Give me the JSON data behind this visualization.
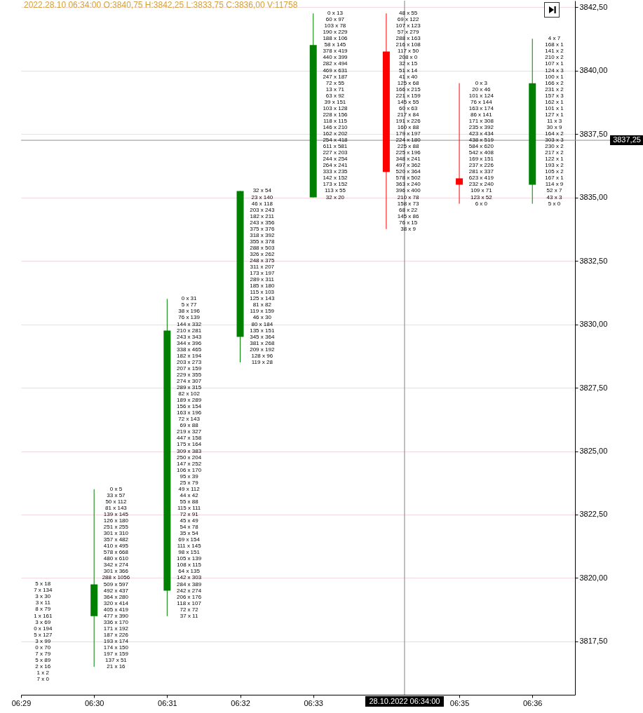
{
  "chart_data": {
    "type": "candlestick",
    "title": "2022.28.10 06:34:00 O:3840,75 H:3842,25 L:3833,75 C:3836,00 V:11758",
    "x": [
      "2022-10-28T06:30",
      "2022-10-28T06:31",
      "2022-10-28T06:32",
      "2022-10-28T06:33",
      "2022-10-28T06:34",
      "2022-10-28T06:35",
      "2022-10-28T06:36"
    ],
    "ohlc": [
      [
        3818.5,
        3823.5,
        3816.5,
        3819.75
      ],
      [
        3819.5,
        3831.0,
        3818.5,
        3829.75
      ],
      [
        3829.5,
        3835.25,
        3828.5,
        3835.25
      ],
      [
        3835.0,
        3842.25,
        3835.0,
        3841.0
      ],
      [
        3840.75,
        3842.25,
        3833.75,
        3836.0
      ],
      [
        3835.75,
        3839.5,
        3834.75,
        3835.5
      ],
      [
        3835.5,
        3841.25,
        3834.75,
        3839.5
      ]
    ],
    "colors": [
      "#008000",
      "#008000",
      "#008000",
      "#008000",
      "#ff0000",
      "#ff0000",
      "#008000"
    ],
    "xlim": [
      "2022-10-28T06:29",
      "2022-10-28T06:36:35"
    ],
    "xticks": [
      {
        "value": "2022-10-28T06:29",
        "label": "06:29"
      },
      {
        "value": "2022-10-28T06:30",
        "label": "06:30"
      },
      {
        "value": "2022-10-28T06:31",
        "label": "06:31"
      },
      {
        "value": "2022-10-28T06:32",
        "label": "06:32"
      },
      {
        "value": "2022-10-28T06:33",
        "label": "06:33"
      },
      {
        "value": "2022-10-28T06:35",
        "label": "06:35"
      },
      {
        "value": "2022-10-28T06:36",
        "label": "06:36"
      }
    ],
    "ylim": [
      3815.4,
      3842.75
    ],
    "yticks": [
      {
        "value": 3817.5,
        "label": "3817,50"
      },
      {
        "value": 3820,
        "label": "3820,00"
      },
      {
        "value": 3822.5,
        "label": "3822,50"
      },
      {
        "value": 3825,
        "label": "3825,00"
      },
      {
        "value": 3827.5,
        "label": "3827,50"
      },
      {
        "value": 3830,
        "label": "3830,00"
      },
      {
        "value": 3832.5,
        "label": "3832,50"
      },
      {
        "value": 3835,
        "label": "3835,00"
      },
      {
        "value": 3837.5,
        "label": "3837,50"
      },
      {
        "value": 3840,
        "label": "3840,00"
      },
      {
        "value": 3842.5,
        "label": "3842,50"
      }
    ],
    "grid": "y",
    "ref_lines": [
      {
        "axis": "y",
        "value": 3837.25,
        "label": "3837,25",
        "color": "#909090"
      },
      {
        "axis": "x",
        "value": "2022-10-28T06:34:15",
        "label": "28.10.2022 06:34:00",
        "color": "#808080"
      }
    ],
    "annotations": [
      "5 x 18",
      "7 x 134",
      "3 x 30",
      "3 x 11",
      "8 x 79",
      "1 x 161",
      "3 x 69",
      "0 x 194",
      "5 x 127",
      "3 x 99",
      "0 x 70",
      "7 x 79",
      "5 x 89",
      "2 x 16",
      "1 x 2",
      "7 x 0",
      {
        "text": "0 x 5",
        "x": "2022-10-28T06:30",
        "y": 3823.5
      },
      {
        "text": "33 x 57",
        "x": "2022-10-28T06:30",
        "y": 3823.25
      },
      {
        "text": "50 x 112",
        "x": "2022-10-28T06:30",
        "y": 3823
      },
      {
        "text": "81 x 143",
        "x": "2022-10-28T06:30",
        "y": 3822.75
      },
      {
        "text": "139 x 145",
        "x": "2022-10-28T06:30",
        "y": 3822.5
      },
      {
        "text": "126 x 180",
        "x": "2022-10-28T06:30",
        "y": 3822.25
      },
      {
        "text": "251 x 255",
        "x": "2022-10-28T06:30",
        "y": 3822
      },
      {
        "text": "301 x 310",
        "x": "2022-10-28T06:30",
        "y": 3821.75
      },
      {
        "text": "357 x 482",
        "x": "2022-10-28T06:30",
        "y": 3821.5
      },
      {
        "text": "410 x 495",
        "x": "2022-10-28T06:30",
        "y": 3821.25
      },
      {
        "text": "578 x 668",
        "x": "2022-10-28T06:30",
        "y": 3821
      },
      {
        "text": "480 x 610",
        "x": "2022-10-28T06:30",
        "y": 3820.75
      },
      {
        "text": "342 x 274",
        "x": "2022-10-28T06:30",
        "y": 3820.5
      },
      {
        "text": "301 x 366",
        "x": "2022-10-28T06:30",
        "y": 3820.25
      },
      {
        "text": "288 x 1056",
        "x": "2022-10-28T06:30",
        "y": 3820
      },
      {
        "text": "509 x 597",
        "x": "2022-10-28T06:30",
        "y": 3819.75
      },
      {
        "text": "492 x 437",
        "x": "2022-10-28T06:30",
        "y": 3819.5
      },
      {
        "text": "364 x 280",
        "x": "2022-10-28T06:30",
        "y": 3819.25
      },
      {
        "text": "320 x 414",
        "x": "2022-10-28T06:30",
        "y": 3819
      },
      {
        "text": "405 x 419",
        "x": "2022-10-28T06:30",
        "y": 3818.75
      },
      {
        "text": "477 x 390",
        "x": "2022-10-28T06:30",
        "y": 3818.5
      },
      {
        "text": "336 x 170",
        "x": "2022-10-28T06:30",
        "y": 3818.25
      },
      {
        "text": "171 x 192",
        "x": "2022-10-28T06:30",
        "y": 3818
      },
      {
        "text": "187 x 226",
        "x": "2022-10-28T06:30",
        "y": 3817.75
      },
      {
        "text": "193 x 174",
        "x": "2022-10-28T06:30",
        "y": 3817.5
      },
      {
        "text": "174 x 150",
        "x": "2022-10-28T06:30",
        "y": 3817.25
      },
      {
        "text": "197 x 159",
        "x": "2022-10-28T06:30",
        "y": 3817
      },
      {
        "text": "137 x 51",
        "x": "2022-10-28T06:30",
        "y": 3816.75
      },
      {
        "text": "21 x 16",
        "x": "2022-10-28T06:30",
        "y": 3816.5
      },
      {
        "text": "0 x 31",
        "x": "2022-10-28T06:31",
        "y": 3831
      },
      {
        "text": "5 x 77",
        "x": "2022-10-28T06:31",
        "y": 3830.75
      },
      {
        "text": "38 x 196",
        "x": "2022-10-28T06:31",
        "y": 3830.5
      },
      {
        "text": "76 x 139",
        "x": "2022-10-28T06:31",
        "y": 3830.25
      },
      {
        "text": "144 x 332",
        "x": "2022-10-28T06:31",
        "y": 3830
      },
      {
        "text": "210 x 281",
        "x": "2022-10-28T06:31",
        "y": 3829.75
      },
      {
        "text": "243 x 343",
        "x": "2022-10-28T06:31",
        "y": 3829.5
      },
      {
        "text": "344 x 396",
        "x": "2022-10-28T06:31",
        "y": 3829.25
      },
      {
        "text": "338 x 465",
        "x": "2022-10-28T06:31",
        "y": 3829
      },
      {
        "text": "182 x 194",
        "x": "2022-10-28T06:31",
        "y": 3828.75
      },
      {
        "text": "203 x 273",
        "x": "2022-10-28T06:31",
        "y": 3828.5
      },
      {
        "text": "207 x 159",
        "x": "2022-10-28T06:31",
        "y": 3828.25
      },
      {
        "text": "229 x 355",
        "x": "2022-10-28T06:31",
        "y": 3828
      },
      {
        "text": "274 x 307",
        "x": "2022-10-28T06:31",
        "y": 3827.75
      },
      {
        "text": "289 x 315",
        "x": "2022-10-28T06:31",
        "y": 3827.5
      },
      {
        "text": "82 x 102",
        "x": "2022-10-28T06:31",
        "y": 3827.25
      },
      {
        "text": "189 x 289",
        "x": "2022-10-28T06:31",
        "y": 3827
      },
      {
        "text": "156 x 154",
        "x": "2022-10-28T06:31",
        "y": 3826.75
      },
      {
        "text": "163 x 196",
        "x": "2022-10-28T06:31",
        "y": 3826.5
      },
      {
        "text": "72 x 143",
        "x": "2022-10-28T06:31",
        "y": 3826.25
      },
      {
        "text": "69 x 88",
        "x": "2022-10-28T06:31",
        "y": 3826
      },
      {
        "text": "219 x 327",
        "x": "2022-10-28T06:31",
        "y": 3825.75
      },
      {
        "text": "447 x 158",
        "x": "2022-10-28T06:31",
        "y": 3825.5
      },
      {
        "text": "175 x 164",
        "x": "2022-10-28T06:31",
        "y": 3825.25
      },
      {
        "text": "309 x 383",
        "x": "2022-10-28T06:31",
        "y": 3825
      },
      {
        "text": "250 x 204",
        "x": "2022-10-28T06:31",
        "y": 3824.75
      },
      {
        "text": "147 x 252",
        "x": "2022-10-28T06:31",
        "y": 3824.5
      },
      {
        "text": "106 x 170",
        "x": "2022-10-28T06:31",
        "y": 3824.25
      },
      {
        "text": "95 x 39",
        "x": "2022-10-28T06:31",
        "y": 3824
      },
      {
        "text": "25 x 79",
        "x": "2022-10-28T06:31",
        "y": 3823.75
      },
      {
        "text": "49 x 112",
        "x": "2022-10-28T06:31",
        "y": 3823.5
      },
      {
        "text": "44 x 42",
        "x": "2022-10-28T06:31",
        "y": 3823.25
      },
      {
        "text": "55 x 88",
        "x": "2022-10-28T06:31",
        "y": 3823
      },
      {
        "text": "115 x 111",
        "x": "2022-10-28T06:31",
        "y": 3822.75
      },
      {
        "text": "72 x 91",
        "x": "2022-10-28T06:31",
        "y": 3822.5
      },
      {
        "text": "45 x 49",
        "x": "2022-10-28T06:31",
        "y": 3822.25
      },
      {
        "text": "54 x 78",
        "x": "2022-10-28T06:31",
        "y": 3822
      },
      {
        "text": "35 x 54",
        "x": "2022-10-28T06:31",
        "y": 3821.75
      },
      {
        "text": "69 x 154",
        "x": "2022-10-28T06:31",
        "y": 3821.5
      },
      {
        "text": "111 x 145",
        "x": "2022-10-28T06:31",
        "y": 3821.25
      },
      {
        "text": "98 x 151",
        "x": "2022-10-28T06:31",
        "y": 3821
      },
      {
        "text": "105 x 139",
        "x": "2022-10-28T06:31",
        "y": 3820.75
      },
      {
        "text": "108 x 115",
        "x": "2022-10-28T06:31",
        "y": 3820.5
      },
      {
        "text": "64 x 135",
        "x": "2022-10-28T06:31",
        "y": 3820.25
      },
      {
        "text": "142 x 303",
        "x": "2022-10-28T06:31",
        "y": 3820
      },
      {
        "text": "284 x 389",
        "x": "2022-10-28T06:31",
        "y": 3819.75
      },
      {
        "text": "242 x 274",
        "x": "2022-10-28T06:31",
        "y": 3819.5
      },
      {
        "text": "206 x 176",
        "x": "2022-10-28T06:31",
        "y": 3819.25
      },
      {
        "text": "118 x 107",
        "x": "2022-10-28T06:31",
        "y": 3819
      },
      {
        "text": "72 x 72",
        "x": "2022-10-28T06:31",
        "y": 3818.75
      },
      {
        "text": "37 x 11",
        "x": "2022-10-28T06:31",
        "y": 3818.5
      },
      {
        "text": "32 x 54",
        "x": "2022-10-28T06:32",
        "y": 3835.25
      },
      {
        "text": "23 x 140",
        "x": "2022-10-28T06:32",
        "y": 3835
      },
      {
        "text": "46 x 118",
        "x": "2022-10-28T06:32",
        "y": 3834.75
      },
      {
        "text": "203 x 243",
        "x": "2022-10-28T06:32",
        "y": 3834.5
      },
      {
        "text": "182 x 211",
        "x": "2022-10-28T06:32",
        "y": 3834.25
      },
      {
        "text": "243 x 356",
        "x": "2022-10-28T06:32",
        "y": 3834
      },
      {
        "text": "375 x 376",
        "x": "2022-10-28T06:32",
        "y": 3833.75
      },
      {
        "text": "318 x 392",
        "x": "2022-10-28T06:32",
        "y": 3833.5
      },
      {
        "text": "355 x 378",
        "x": "2022-10-28T06:32",
        "y": 3833.25
      },
      {
        "text": "288 x 503",
        "x": "2022-10-28T06:32",
        "y": 3833
      },
      {
        "text": "326 x 262",
        "x": "2022-10-28T06:32",
        "y": 3832.75
      },
      {
        "text": "248 x 375",
        "x": "2022-10-28T06:32",
        "y": 3832.5
      },
      {
        "text": "311 x 207",
        "x": "2022-10-28T06:32",
        "y": 3832.25
      },
      {
        "text": "173 x 197",
        "x": "2022-10-28T06:32",
        "y": 3832
      },
      {
        "text": "289 x 311",
        "x": "2022-10-28T06:32",
        "y": 3831.75
      },
      {
        "text": "185 x 180",
        "x": "2022-10-28T06:32",
        "y": 3831.5
      },
      {
        "text": "115 x 103",
        "x": "2022-10-28T06:32",
        "y": 3831.25
      },
      {
        "text": "125 x 143",
        "x": "2022-10-28T06:32",
        "y": 3831
      },
      {
        "text": "81 x 82",
        "x": "2022-10-28T06:32",
        "y": 3830.75
      },
      {
        "text": "119 x 159",
        "x": "2022-10-28T06:32",
        "y": 3830.5
      },
      {
        "text": "46 x 30",
        "x": "2022-10-28T06:32",
        "y": 3830.25
      },
      {
        "text": "80 x 184",
        "x": "2022-10-28T06:32",
        "y": 3830
      },
      {
        "text": "135 x 151",
        "x": "2022-10-28T06:32",
        "y": 3829.75
      },
      {
        "text": "345 x 364",
        "x": "2022-10-28T06:32",
        "y": 3829.5
      },
      {
        "text": "381 x 268",
        "x": "2022-10-28T06:32",
        "y": 3829.25
      },
      {
        "text": "209 x 192",
        "x": "2022-10-28T06:32",
        "y": 3829
      },
      {
        "text": "128 x 96",
        "x": "2022-10-28T06:32",
        "y": 3828.75
      },
      {
        "text": "119 x 28",
        "x": "2022-10-28T06:32",
        "y": 3828.5
      },
      {
        "text": "0 x 13",
        "x": "2022-10-28T06:33",
        "y": 3842.25
      },
      {
        "text": "60 x 97",
        "x": "2022-10-28T06:33",
        "y": 3842
      },
      {
        "text": "103 x 78",
        "x": "2022-10-28T06:33",
        "y": 3841.75
      },
      {
        "text": "190 x 229",
        "x": "2022-10-28T06:33",
        "y": 3841.5
      },
      {
        "text": "188 x 106",
        "x": "2022-10-28T06:33",
        "y": 3841.25
      },
      {
        "text": "58 x 145",
        "x": "2022-10-28T06:33",
        "y": 3841
      },
      {
        "text": "378 x 419",
        "x": "2022-10-28T06:33",
        "y": 3840.75
      },
      {
        "text": "440 x 399",
        "x": "2022-10-28T06:33",
        "y": 3840.5
      },
      {
        "text": "282 x 494",
        "x": "2022-10-28T06:33",
        "y": 3840.25
      },
      {
        "text": "469 x 631",
        "x": "2022-10-28T06:33",
        "y": 3840
      },
      {
        "text": "247 x 187",
        "x": "2022-10-28T06:33",
        "y": 3839.75
      },
      {
        "text": "72 x 55",
        "x": "2022-10-28T06:33",
        "y": 3839.5
      },
      {
        "text": "13 x 71",
        "x": "2022-10-28T06:33",
        "y": 3839.25
      },
      {
        "text": "63 x 92",
        "x": "2022-10-28T06:33",
        "y": 3839
      },
      {
        "text": "39 x 151",
        "x": "2022-10-28T06:33",
        "y": 3838.75
      },
      {
        "text": "103 x 128",
        "x": "2022-10-28T06:33",
        "y": 3838.5
      },
      {
        "text": "228 x 156",
        "x": "2022-10-28T06:33",
        "y": 3838.25
      },
      {
        "text": "118 x 115",
        "x": "2022-10-28T06:33",
        "y": 3838
      },
      {
        "text": "146 x 210",
        "x": "2022-10-28T06:33",
        "y": 3837.75
      },
      {
        "text": "162 x 202",
        "x": "2022-10-28T06:33",
        "y": 3837.5
      },
      {
        "text": "254 x 418",
        "x": "2022-10-28T06:33",
        "y": 3837.25
      },
      {
        "text": "611 x 581",
        "x": "2022-10-28T06:33",
        "y": 3837
      },
      {
        "text": "227 x 203",
        "x": "2022-10-28T06:33",
        "y": 3836.75
      },
      {
        "text": "244 x 254",
        "x": "2022-10-28T06:33",
        "y": 3836.5
      },
      {
        "text": "264 x 241",
        "x": "2022-10-28T06:33",
        "y": 3836.25
      },
      {
        "text": "333 x 235",
        "x": "2022-10-28T06:33",
        "y": 3836
      },
      {
        "text": "142 x 152",
        "x": "2022-10-28T06:33",
        "y": 3835.75
      },
      {
        "text": "173 x 152",
        "x": "2022-10-28T06:33",
        "y": 3835.5
      },
      {
        "text": "113 x 55",
        "x": "2022-10-28T06:33",
        "y": 3835.25
      },
      {
        "text": "32 x 20",
        "x": "2022-10-28T06:33",
        "y": 3835
      },
      {
        "text": "48 x 55",
        "x": "2022-10-28T06:34",
        "y": 3842.25
      },
      {
        "text": "69 x 122",
        "x": "2022-10-28T06:34",
        "y": 3842
      },
      {
        "text": "107 x 123",
        "x": "2022-10-28T06:34",
        "y": 3841.75
      },
      {
        "text": "57 x 279",
        "x": "2022-10-28T06:34",
        "y": 3841.5
      },
      {
        "text": "288 x 163",
        "x": "2022-10-28T06:34",
        "y": 3841.25
      },
      {
        "text": "216 x 108",
        "x": "2022-10-28T06:34",
        "y": 3841
      },
      {
        "text": "117 x 50",
        "x": "2022-10-28T06:34",
        "y": 3840.75
      },
      {
        "text": "208 x 0",
        "x": "2022-10-28T06:34",
        "y": 3840.5
      },
      {
        "text": "32 x 15",
        "x": "2022-10-28T06:34",
        "y": 3840.25
      },
      {
        "text": "51 x 14",
        "x": "2022-10-28T06:34",
        "y": 3840
      },
      {
        "text": "41 x 40",
        "x": "2022-10-28T06:34",
        "y": 3839.75
      },
      {
        "text": "125 x 68",
        "x": "2022-10-28T06:34",
        "y": 3839.5
      },
      {
        "text": "166 x 215",
        "x": "2022-10-28T06:34",
        "y": 3839.25
      },
      {
        "text": "221 x 159",
        "x": "2022-10-28T06:34",
        "y": 3839
      },
      {
        "text": "145 x 55",
        "x": "2022-10-28T06:34",
        "y": 3838.75
      },
      {
        "text": "60 x 63",
        "x": "2022-10-28T06:34",
        "y": 3838.5
      },
      {
        "text": "217 x 84",
        "x": "2022-10-28T06:34",
        "y": 3838.25
      },
      {
        "text": "191 x 226",
        "x": "2022-10-28T06:34",
        "y": 3838
      },
      {
        "text": "160 x 88",
        "x": "2022-10-28T06:34",
        "y": 3837.75
      },
      {
        "text": "179 x 197",
        "x": "2022-10-28T06:34",
        "y": 3837.5
      },
      {
        "text": "224 x 180",
        "x": "2022-10-28T06:34",
        "y": 3837.25
      },
      {
        "text": "225 x 88",
        "x": "2022-10-28T06:34",
        "y": 3837
      },
      {
        "text": "225 x 196",
        "x": "2022-10-28T06:34",
        "y": 3836.75
      },
      {
        "text": "348 x 241",
        "x": "2022-10-28T06:34",
        "y": 3836.5
      },
      {
        "text": "497 x 362",
        "x": "2022-10-28T06:34",
        "y": 3836.25
      },
      {
        "text": "520 x 364",
        "x": "2022-10-28T06:34",
        "y": 3836
      },
      {
        "text": "578 x 502",
        "x": "2022-10-28T06:34",
        "y": 3835.75
      },
      {
        "text": "363 x 240",
        "x": "2022-10-28T06:34",
        "y": 3835.5
      },
      {
        "text": "396 x 400",
        "x": "2022-10-28T06:34",
        "y": 3835.25
      },
      {
        "text": "210 x 78",
        "x": "2022-10-28T06:34",
        "y": 3835
      },
      {
        "text": "158 x 73",
        "x": "2022-10-28T06:34",
        "y": 3834.75
      },
      {
        "text": "68 x 22",
        "x": "2022-10-28T06:34",
        "y": 3834.5
      },
      {
        "text": "145 x 86",
        "x": "2022-10-28T06:34",
        "y": 3834.25
      },
      {
        "text": "76 x 15",
        "x": "2022-10-28T06:34",
        "y": 3834
      },
      {
        "text": "38 x 9",
        "x": "2022-10-28T06:34",
        "y": 3833.75
      },
      {
        "text": "0 x 3",
        "x": "2022-10-28T06:35",
        "y": 3839.5
      },
      {
        "text": "20 x 46",
        "x": "2022-10-28T06:35",
        "y": 3839.25
      },
      {
        "text": "101 x 124",
        "x": "2022-10-28T06:35",
        "y": 3839
      },
      {
        "text": "76 x 144",
        "x": "2022-10-28T06:35",
        "y": 3838.75
      },
      {
        "text": "163 x 174",
        "x": "2022-10-28T06:35",
        "y": 3838.5
      },
      {
        "text": "86 x 141",
        "x": "2022-10-28T06:35",
        "y": 3838.25
      },
      {
        "text": "171 x 308",
        "x": "2022-10-28T06:35",
        "y": 3838
      },
      {
        "text": "235 x 392",
        "x": "2022-10-28T06:35",
        "y": 3837.75
      },
      {
        "text": "423 x 434",
        "x": "2022-10-28T06:35",
        "y": 3837.5
      },
      {
        "text": "438 x 519",
        "x": "2022-10-28T06:35",
        "y": 3837.25
      },
      {
        "text": "584 x 620",
        "x": "2022-10-28T06:35",
        "y": 3837
      },
      {
        "text": "542 x 408",
        "x": "2022-10-28T06:35",
        "y": 3836.75
      },
      {
        "text": "169 x 151",
        "x": "2022-10-28T06:35",
        "y": 3836.5
      },
      {
        "text": "237 x 226",
        "x": "2022-10-28T06:35",
        "y": 3836.25
      },
      {
        "text": "281 x 337",
        "x": "2022-10-28T06:35",
        "y": 3836
      },
      {
        "text": "623 x 419",
        "x": "2022-10-28T06:35",
        "y": 3835.75
      },
      {
        "text": "232 x 240",
        "x": "2022-10-28T06:35",
        "y": 3835.5
      },
      {
        "text": "109 x 71",
        "x": "2022-10-28T06:35",
        "y": 3835.25
      },
      {
        "text": "123 x 52",
        "x": "2022-10-28T06:35",
        "y": 3835
      },
      {
        "text": "6 x 0",
        "x": "2022-10-28T06:35",
        "y": 3834.75
      },
      {
        "text": "4 x 7",
        "x": "2022-10-28T06:36",
        "y": 3841.25
      },
      {
        "text": "168 x 1",
        "x": "2022-10-28T06:36",
        "y": 3841
      },
      {
        "text": "141 x 2",
        "x": "2022-10-28T06:36",
        "y": 3840.75
      },
      {
        "text": "210 x 2",
        "x": "2022-10-28T06:36",
        "y": 3840.5
      },
      {
        "text": "107 x 1",
        "x": "2022-10-28T06:36",
        "y": 3840.25
      },
      {
        "text": "124 x 3",
        "x": "2022-10-28T06:36",
        "y": 3840
      },
      {
        "text": "100 x 1",
        "x": "2022-10-28T06:36",
        "y": 3839.75
      },
      {
        "text": "166 x 2",
        "x": "2022-10-28T06:36",
        "y": 3839.5
      },
      {
        "text": "231 x 2",
        "x": "2022-10-28T06:36",
        "y": 3839.25
      },
      {
        "text": "157 x 3",
        "x": "2022-10-28T06:36",
        "y": 3839
      },
      {
        "text": "162 x 1",
        "x": "2022-10-28T06:36",
        "y": 3838.75
      },
      {
        "text": "101 x 1",
        "x": "2022-10-28T06:36",
        "y": 3838.5
      },
      {
        "text": "127 x 1",
        "x": "2022-10-28T06:36",
        "y": 3838.25
      },
      {
        "text": "11 x 3",
        "x": "2022-10-28T06:36",
        "y": 3838
      },
      {
        "text": "30 x 9",
        "x": "2022-10-28T06:36",
        "y": 3837.75
      },
      {
        "text": "164 x 2",
        "x": "2022-10-28T06:36",
        "y": 3837.5
      },
      {
        "text": "303 x 3",
        "x": "2022-10-28T06:36",
        "y": 3837.25
      },
      {
        "text": "230 x 2",
        "x": "2022-10-28T06:36",
        "y": 3837
      },
      {
        "text": "217 x 2",
        "x": "2022-10-28T06:36",
        "y": 3836.75
      },
      {
        "text": "122 x 1",
        "x": "2022-10-28T06:36",
        "y": 3836.5
      },
      {
        "text": "193 x 2",
        "x": "2022-10-28T06:36",
        "y": 3836.25
      },
      {
        "text": "105 x 2",
        "x": "2022-10-28T06:36",
        "y": 3836
      },
      {
        "text": "167 x 1",
        "x": "2022-10-28T06:36",
        "y": 3835.75
      },
      {
        "text": "114 x 9",
        "x": "2022-10-28T06:36",
        "y": 3835.5
      },
      {
        "text": "52 x 7",
        "x": "2022-10-28T06:36",
        "y": 3835.25
      },
      {
        "text": "43 x 3",
        "x": "2022-10-28T06:36",
        "y": 3835
      },
      {
        "text": "5 x 0",
        "x": "2022-10-28T06:36",
        "y": 3834.75
      }
    ]
  }
}
